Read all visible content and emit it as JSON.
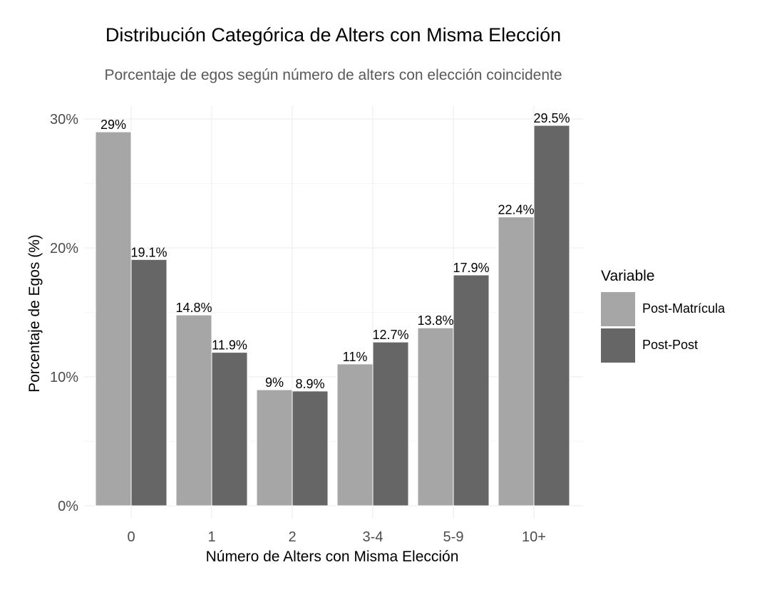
{
  "chart_data": {
    "type": "bar",
    "title": "Distribución Categórica de Alters con Misma Elección",
    "subtitle": "Porcentaje de egos según número de alters con elección coincidente",
    "xlabel": "Número de Alters con Misma Elección",
    "ylabel": "Porcentaje de Egos (%)",
    "categories": [
      "0",
      "1",
      "2",
      "3-4",
      "5-9",
      "10+"
    ],
    "series": [
      {
        "name": "Post-Matrícula",
        "color": "#a6a6a6",
        "values": [
          29,
          14.8,
          9,
          11,
          13.8,
          22.4
        ],
        "labels": [
          "29%",
          "14.8%",
          "9%",
          "11%",
          "13.8%",
          "22.4%"
        ]
      },
      {
        "name": "Post-Post",
        "color": "#666666",
        "values": [
          19.1,
          11.9,
          8.9,
          12.7,
          17.9,
          29.5
        ],
        "labels": [
          "19.1%",
          "11.9%",
          "8.9%",
          "12.7%",
          "17.9%",
          "29.5%"
        ]
      }
    ],
    "ylim": [
      0,
      30
    ],
    "yticks": [
      0,
      10,
      20,
      30
    ],
    "ytick_labels": [
      "0%",
      "10%",
      "20%",
      "30%"
    ],
    "legend_title": "Variable",
    "legend_position": "right",
    "grid": true
  }
}
